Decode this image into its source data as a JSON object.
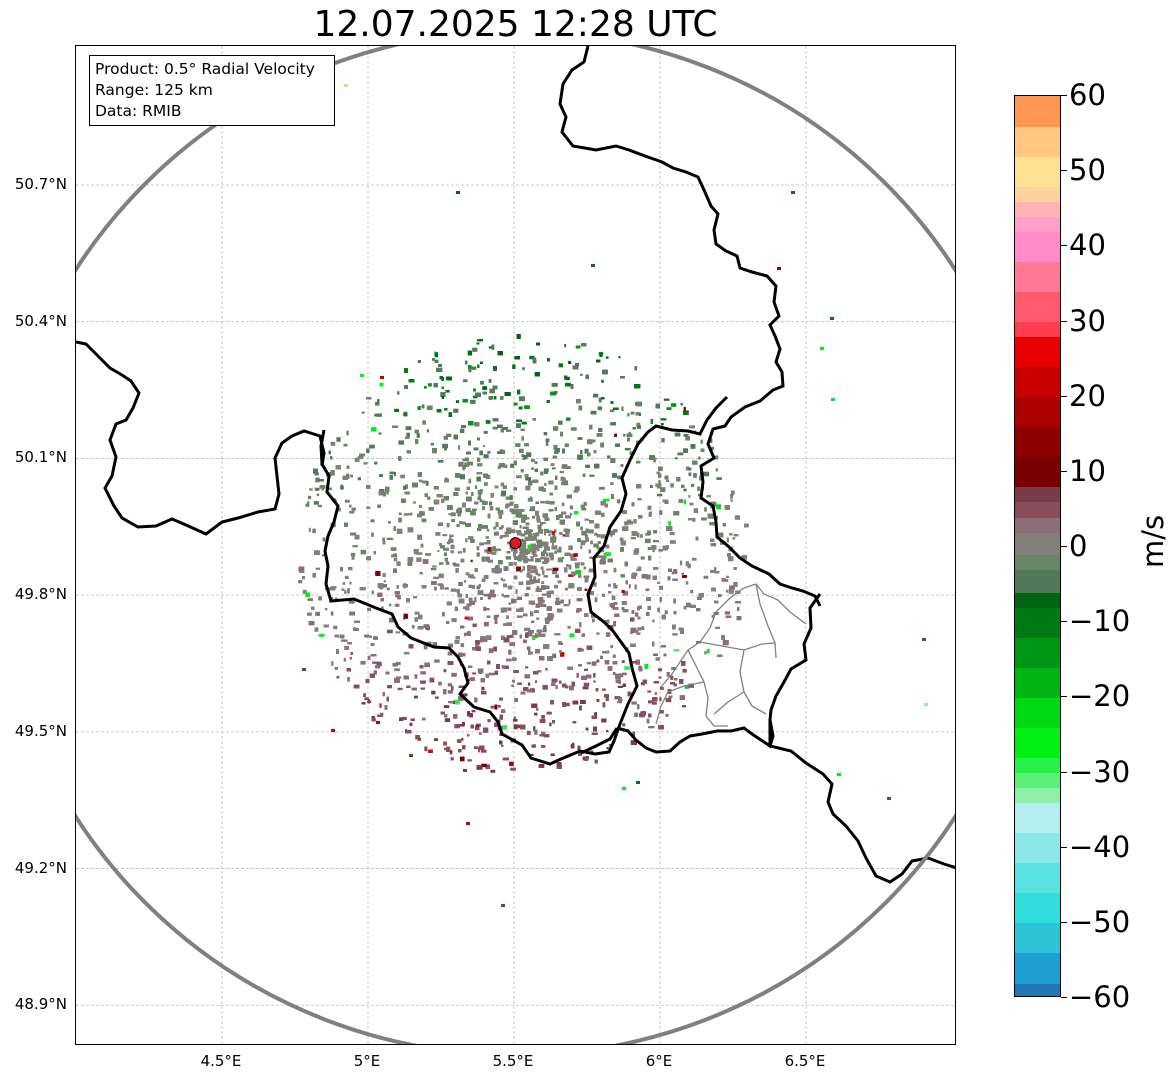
{
  "title": "12.07.2025 12:28 UTC",
  "info": {
    "product": "Product: 0.5° Radial Velocity",
    "range": "Range: 125 km",
    "data": "Data: RMIB"
  },
  "map": {
    "radar_site": {
      "lon": 5.505,
      "lat": 49.914
    },
    "range_km": 125,
    "lon_range": [
      4.0,
      7.0
    ],
    "lat_range": [
      48.8,
      51.0
    ],
    "x_ticks": [
      {
        "value": 4.5,
        "label": "4.5°E"
      },
      {
        "value": 5.0,
        "label": "5°E"
      },
      {
        "value": 5.5,
        "label": "5.5°E"
      },
      {
        "value": 6.0,
        "label": "6°E"
      },
      {
        "value": 6.5,
        "label": "6.5°E"
      }
    ],
    "y_ticks": [
      {
        "value": 50.7,
        "label": "50.7°N"
      },
      {
        "value": 50.4,
        "label": "50.4°N"
      },
      {
        "value": 50.1,
        "label": "50.1°N"
      },
      {
        "value": 49.8,
        "label": "49.8°N"
      },
      {
        "value": 49.5,
        "label": "49.5°N"
      },
      {
        "value": 49.2,
        "label": "49.2°N"
      },
      {
        "value": 48.9,
        "label": "48.9°N"
      }
    ],
    "range_ring_color": "#808080",
    "border_color": "#000000",
    "district_color": "#808080",
    "site_marker_color": "#e8141e"
  },
  "colorbar": {
    "unit": "m/s",
    "min": -60,
    "max": 60,
    "ticks": [
      {
        "value": 60,
        "label": "60"
      },
      {
        "value": 50,
        "label": "50"
      },
      {
        "value": 40,
        "label": "40"
      },
      {
        "value": 30,
        "label": "30"
      },
      {
        "value": 20,
        "label": "20"
      },
      {
        "value": 10,
        "label": "10"
      },
      {
        "value": 0,
        "label": "0"
      },
      {
        "value": -10,
        "label": "−10"
      },
      {
        "value": -20,
        "label": "−20"
      },
      {
        "value": -30,
        "label": "−30"
      },
      {
        "value": -40,
        "label": "−40"
      },
      {
        "value": -50,
        "label": "−50"
      },
      {
        "value": -60,
        "label": "−60"
      }
    ],
    "stops": [
      {
        "from": -60,
        "to": -58,
        "color": "#1f77b4"
      },
      {
        "from": -58,
        "to": -54,
        "color": "#20a0d0"
      },
      {
        "from": -54,
        "to": -50,
        "color": "#2ec4d8"
      },
      {
        "from": -50,
        "to": -46,
        "color": "#30dcdc"
      },
      {
        "from": -46,
        "to": -42,
        "color": "#5ae2e0"
      },
      {
        "from": -42,
        "to": -38,
        "color": "#8ce8e6"
      },
      {
        "from": -38,
        "to": -34,
        "color": "#b4eeee"
      },
      {
        "from": -34,
        "to": -32,
        "color": "#8cf0a8"
      },
      {
        "from": -32,
        "to": -30,
        "color": "#5af07a"
      },
      {
        "from": -30,
        "to": -28,
        "color": "#28f048"
      },
      {
        "from": -28,
        "to": -24,
        "color": "#00f014"
      },
      {
        "from": -24,
        "to": -20,
        "color": "#00d814"
      },
      {
        "from": -20,
        "to": -16,
        "color": "#00b414"
      },
      {
        "from": -16,
        "to": -12,
        "color": "#009614"
      },
      {
        "from": -12,
        "to": -8,
        "color": "#007814"
      },
      {
        "from": -8,
        "to": -6,
        "color": "#006414"
      },
      {
        "from": -6,
        "to": -3,
        "color": "#507a5a"
      },
      {
        "from": -3,
        "to": -1,
        "color": "#6a8468"
      },
      {
        "from": -1,
        "to": 2,
        "color": "#82807a"
      },
      {
        "from": 2,
        "to": 4,
        "color": "#8a6e78"
      },
      {
        "from": 4,
        "to": 6,
        "color": "#884f5a"
      },
      {
        "from": 6,
        "to": 8,
        "color": "#7a3c48"
      },
      {
        "from": 8,
        "to": 12,
        "color": "#780000"
      },
      {
        "from": 12,
        "to": 16,
        "color": "#8c0000"
      },
      {
        "from": 16,
        "to": 20,
        "color": "#aa0000"
      },
      {
        "from": 20,
        "to": 24,
        "color": "#c80000"
      },
      {
        "from": 24,
        "to": 28,
        "color": "#e60000"
      },
      {
        "from": 28,
        "to": 30,
        "color": "#ff3c50"
      },
      {
        "from": 30,
        "to": 34,
        "color": "#ff5a6e"
      },
      {
        "from": 34,
        "to": 38,
        "color": "#ff7896"
      },
      {
        "from": 38,
        "to": 42,
        "color": "#ff8cc8"
      },
      {
        "from": 42,
        "to": 44,
        "color": "#ffa0c8"
      },
      {
        "from": 44,
        "to": 46,
        "color": "#ffb4b4"
      },
      {
        "from": 46,
        "to": 48,
        "color": "#ffd2a0"
      },
      {
        "from": 48,
        "to": 52,
        "color": "#ffe196"
      },
      {
        "from": 52,
        "to": 56,
        "color": "#ffc882"
      },
      {
        "from": 56,
        "to": 60,
        "color": "#ff9650"
      }
    ]
  }
}
